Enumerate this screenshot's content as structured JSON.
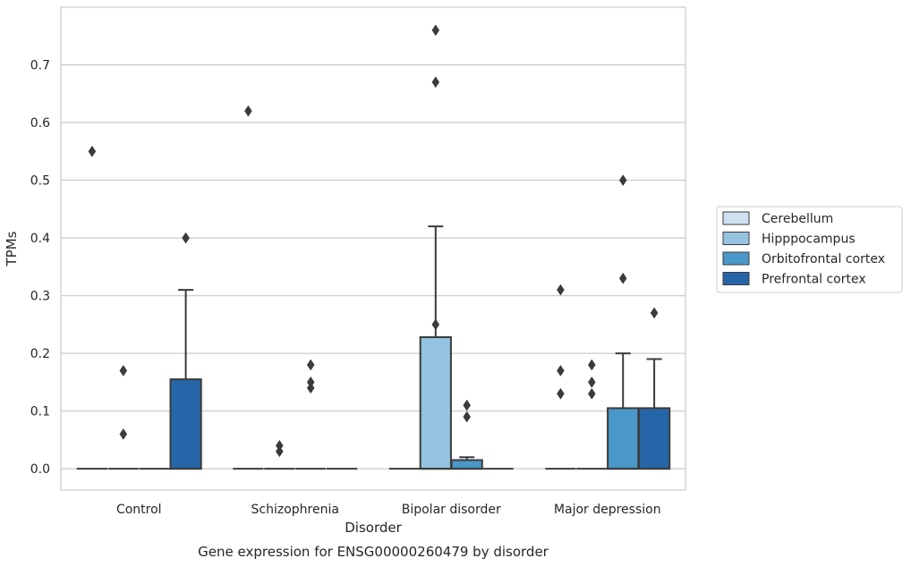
{
  "chart_data": {
    "type": "boxplot",
    "caption": "Gene expression for ENSG00000260479 by disorder",
    "xlabel": "Disorder",
    "ylabel": "TPMs",
    "ylim": [
      -0.037,
      0.8
    ],
    "yticks": [
      0.0,
      0.1,
      0.2,
      0.3,
      0.4,
      0.5,
      0.6,
      0.7
    ],
    "ytick_labels": [
      "0.0",
      "0.1",
      "0.2",
      "0.3",
      "0.4",
      "0.5",
      "0.6",
      "0.7"
    ],
    "grid": "horizontal",
    "legend_position": "right",
    "categories": [
      "Control",
      "Schizophrenia",
      "Bipolar disorder",
      "Major depression"
    ],
    "series": [
      {
        "name": "Cerebellum",
        "color": "#d0e1f2",
        "boxes": [
          {
            "q1": 0,
            "median": 0,
            "q3": 0,
            "whisker_low": 0,
            "whisker_high": 0,
            "outliers": [
              0.55
            ]
          },
          {
            "q1": 0,
            "median": 0,
            "q3": 0,
            "whisker_low": 0,
            "whisker_high": 0,
            "outliers": [
              0.62
            ]
          },
          {
            "q1": 0,
            "median": 0,
            "q3": 0,
            "whisker_low": 0,
            "whisker_high": 0,
            "outliers": []
          },
          {
            "q1": 0,
            "median": 0,
            "q3": 0,
            "whisker_low": 0,
            "whisker_high": 0,
            "outliers": [
              0.31,
              0.17,
              0.13
            ]
          }
        ]
      },
      {
        "name": "Hipppocampus",
        "color": "#94c4df",
        "boxes": [
          {
            "q1": 0,
            "median": 0,
            "q3": 0,
            "whisker_low": 0,
            "whisker_high": 0,
            "outliers": [
              0.17,
              0.06
            ]
          },
          {
            "q1": 0,
            "median": 0,
            "q3": 0,
            "whisker_low": 0,
            "whisker_high": 0,
            "outliers": [
              0.04,
              0.03
            ]
          },
          {
            "q1": 0,
            "median": 0,
            "q3": 0.228,
            "whisker_low": 0,
            "whisker_high": 0.42,
            "outliers": [
              0.76,
              0.67,
              0.25
            ]
          },
          {
            "q1": 0,
            "median": 0,
            "q3": 0,
            "whisker_low": 0,
            "whisker_high": 0,
            "outliers": [
              0.18,
              0.15,
              0.13
            ]
          }
        ]
      },
      {
        "name": "Orbitofrontal cortex",
        "color": "#4a98c9",
        "boxes": [
          {
            "q1": 0,
            "median": 0,
            "q3": 0,
            "whisker_low": 0,
            "whisker_high": 0,
            "outliers": []
          },
          {
            "q1": 0,
            "median": 0,
            "q3": 0,
            "whisker_low": 0,
            "whisker_high": 0,
            "outliers": [
              0.18,
              0.15,
              0.14
            ]
          },
          {
            "q1": 0,
            "median": 0,
            "q3": 0.015,
            "whisker_low": 0,
            "whisker_high": 0.02,
            "outliers": [
              0.11,
              0.09
            ]
          },
          {
            "q1": 0,
            "median": 0,
            "q3": 0.105,
            "whisker_low": 0,
            "whisker_high": 0.2,
            "outliers": [
              0.5,
              0.33
            ]
          }
        ]
      },
      {
        "name": "Prefrontal cortex",
        "color": "#2666a8",
        "boxes": [
          {
            "q1": 0,
            "median": 0,
            "q3": 0.155,
            "whisker_low": 0,
            "whisker_high": 0.31,
            "outliers": [
              0.4
            ]
          },
          {
            "q1": 0,
            "median": 0,
            "q3": 0,
            "whisker_low": 0,
            "whisker_high": 0,
            "outliers": []
          },
          {
            "q1": 0,
            "median": 0,
            "q3": 0,
            "whisker_low": 0,
            "whisker_high": 0,
            "outliers": []
          },
          {
            "q1": 0,
            "median": 0,
            "q3": 0.105,
            "whisker_low": 0,
            "whisker_high": 0.19,
            "outliers": [
              0.27
            ]
          }
        ]
      }
    ]
  }
}
